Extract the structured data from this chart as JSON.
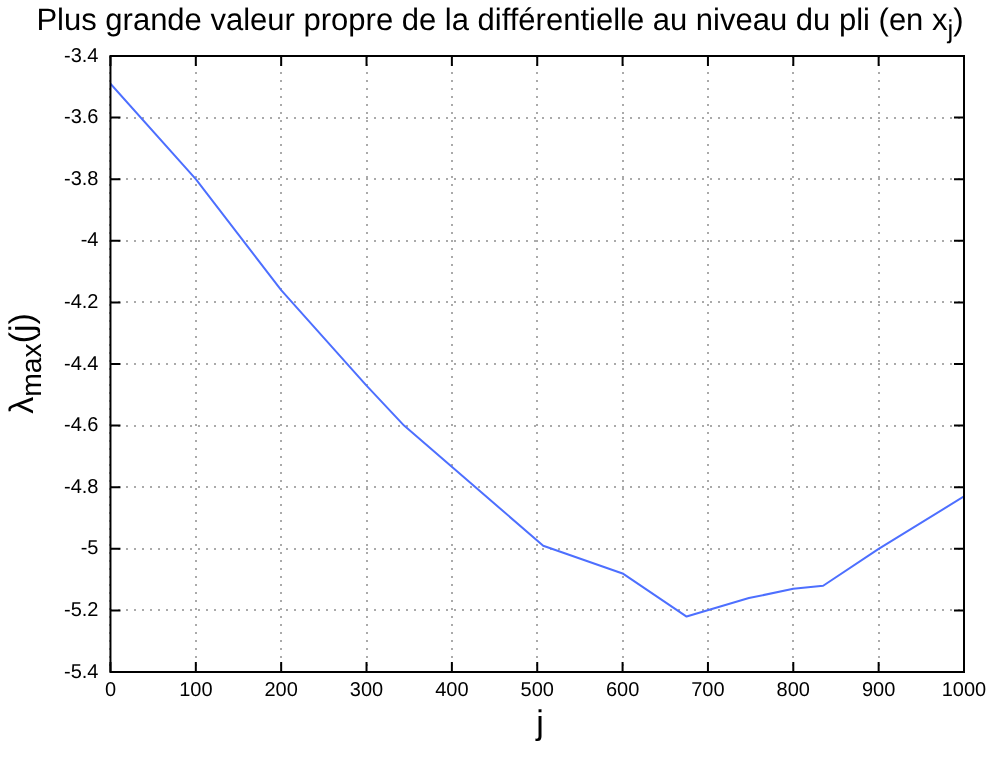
{
  "chart_data": {
    "type": "line",
    "title": "Plus grande valeur propre de la différentielle au niveau du pli (en x$_{j}$)",
    "xlabel": "j",
    "ylabel": "λ$_{max}$(j)",
    "x": [
      0,
      100,
      200,
      300,
      344,
      507,
      600,
      675,
      748,
      800,
      835,
      900,
      1000
    ],
    "series": [
      {
        "color": "#4d6fff",
        "values": [
          -3.49,
          -3.8,
          -4.16,
          -4.47,
          -4.6,
          -4.99,
          -5.08,
          -5.22,
          -5.16,
          -5.13,
          -5.12,
          -5.0,
          -4.83
        ]
      }
    ],
    "xlim": [
      0,
      1000
    ],
    "xticks": [
      0,
      100,
      200,
      300,
      400,
      500,
      600,
      700,
      800,
      900,
      1000
    ],
    "ylim": [
      -5.4,
      -3.4
    ],
    "yticks": [
      -5.4,
      -5.2,
      -5,
      -4.8,
      -4.6,
      -4.4,
      -4.2,
      -4,
      -3.8,
      -3.6,
      -3.4
    ],
    "grid": true,
    "legend": false,
    "marker": "none",
    "line_style": "solid"
  }
}
